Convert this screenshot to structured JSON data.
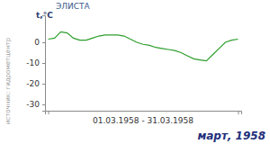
{
  "chart_data": {
    "type": "line",
    "title": "ЭЛИСТА",
    "subtitle": "март, 1958",
    "x_label": "01.03.1958 - 31.03.1958",
    "y_label": "t,°C",
    "annotations": [
      "источник: гидрометцентр"
    ],
    "x": [
      1,
      2,
      3,
      4,
      5,
      6,
      7,
      8,
      9,
      10,
      11,
      12,
      13,
      14,
      15,
      16,
      17,
      18,
      19,
      20,
      21,
      22,
      23,
      24,
      25,
      26,
      27,
      28,
      29,
      30,
      31
    ],
    "series": [
      {
        "name": "t",
        "color": "#2e9e2e",
        "values": [
          1.5,
          2,
          5,
          4.5,
          2,
          1,
          1,
          2,
          3,
          3.5,
          3.5,
          3.5,
          3,
          1.5,
          0,
          -1,
          -1.5,
          -2.5,
          -3,
          -3.5,
          -4,
          -5,
          -6.5,
          -8,
          -8.5,
          -9,
          -6,
          -3,
          0,
          1,
          1.5
        ]
      }
    ],
    "xlim": [
      0.5,
      31.5
    ],
    "xticks": [
      1,
      31
    ],
    "ylim": [
      -33,
      13
    ],
    "yticks": [
      0,
      -10,
      -20,
      -30
    ],
    "grid": false,
    "tick_labels": "y"
  }
}
